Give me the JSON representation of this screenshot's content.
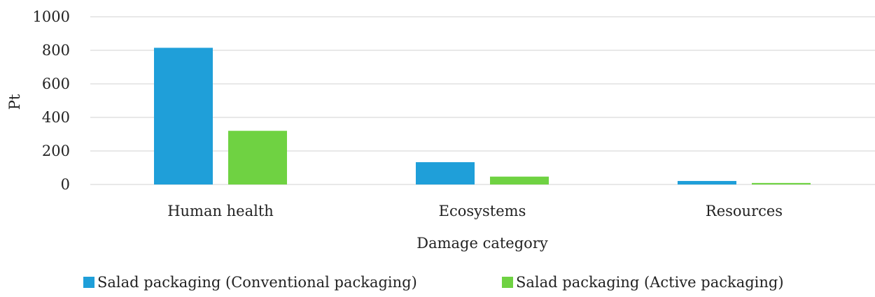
{
  "chart_data": {
    "type": "bar",
    "title": "",
    "xlabel": "Damage category",
    "ylabel": "Pt",
    "categories": [
      "Human health",
      "Ecosystems",
      "Resources"
    ],
    "series": [
      {
        "name": "Salad packaging (Conventional packaging)",
        "color": "#1f9fd9",
        "values": [
          815,
          133,
          21
        ]
      },
      {
        "name": "Salad packaging (Active packaging)",
        "color": "#6fd242",
        "values": [
          320,
          47,
          9
        ]
      }
    ],
    "ylim": [
      0,
      1000
    ],
    "yticks": [
      0,
      200,
      400,
      600,
      800,
      1000
    ],
    "grid": true,
    "gridColor": "#d9d9d9",
    "legend_position": "bottom"
  }
}
